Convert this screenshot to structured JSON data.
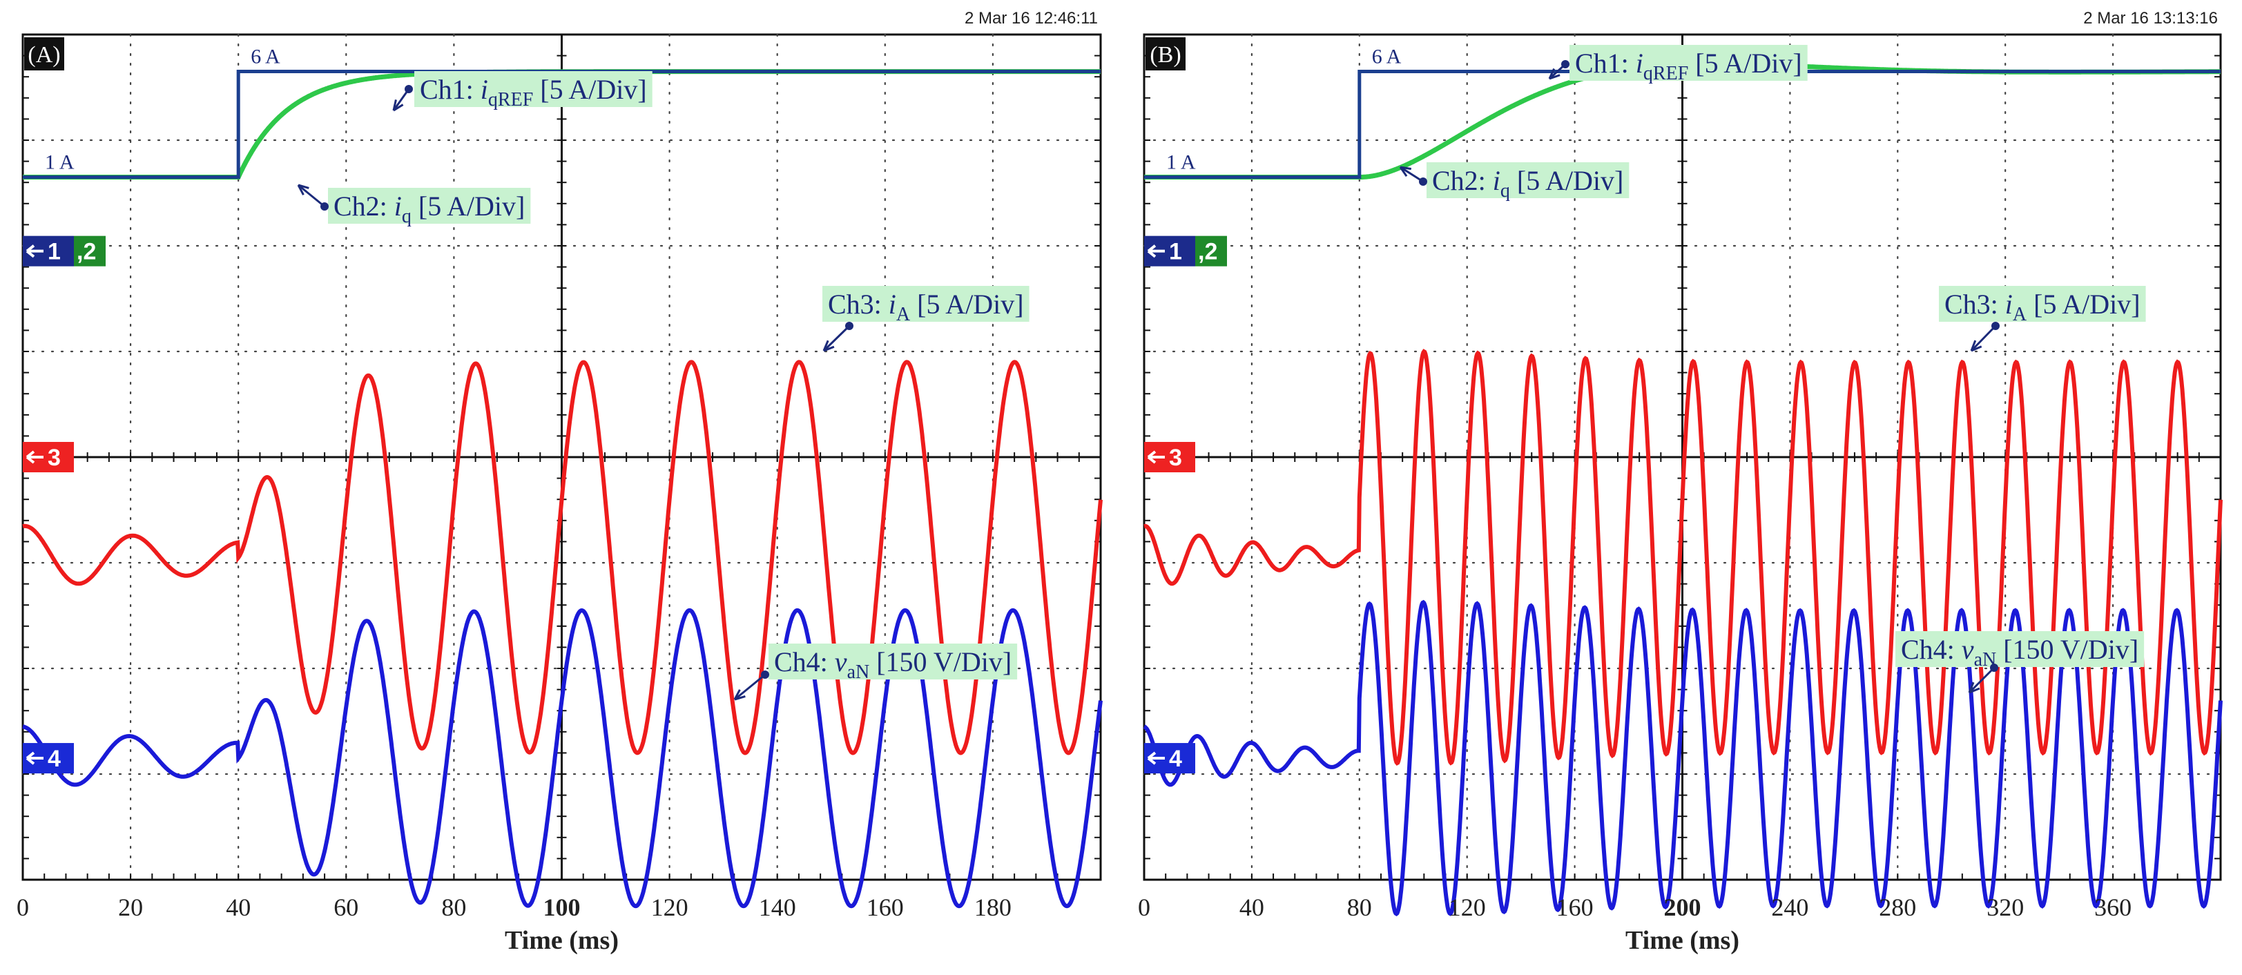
{
  "chart_data": [
    {
      "type": "line",
      "panel_label": "(A)",
      "timestamp": "2 Mar 16  12:46:11",
      "xlabel": "Time (ms)",
      "x_ticks": [
        "0",
        "20",
        "40",
        "60",
        "80",
        "100",
        "120",
        "140",
        "160",
        "180"
      ],
      "x_ticks_major": [
        "100"
      ],
      "xlim": [
        0,
        200
      ],
      "grid": true,
      "step_time_ms": 40,
      "iq_levels_A": [
        1,
        6
      ],
      "current_freq_hz": 50,
      "pre_step_freq_hz": 50,
      "iq_overshoot": false,
      "markers": [
        {
          "channel": "ch12",
          "parts": [
            {
              "text": "1",
              "bg": "#1c2b8c"
            },
            {
              "text": ",2",
              "bg": "#1f8a2a"
            }
          ]
        },
        {
          "channel": "ch3",
          "parts": [
            {
              "text": "3",
              "bg": "#ee2222"
            }
          ]
        },
        {
          "channel": "ch4",
          "parts": [
            {
              "text": "4",
              "bg": "#1a2ad6"
            }
          ]
        }
      ],
      "level_labels": [
        "1 A",
        "6 A"
      ],
      "series": [
        {
          "name": "Ch1: iqREF [5 A/Div]",
          "color": "#1b3f8f",
          "label": {
            "pre": "Ch1: ",
            "var": "i",
            "sub": "qREF",
            "unit": " [5 A/Div]"
          }
        },
        {
          "name": "Ch2: iq [5 A/Div]",
          "color": "#2ec84a",
          "label": {
            "pre": "Ch2: ",
            "var": "i",
            "sub": "q",
            "unit": " [5 A/Div]"
          }
        },
        {
          "name": "Ch3: iA [5 A/Div]",
          "color": "#ee1c1c",
          "label": {
            "pre": "Ch3: ",
            "var": "i",
            "sub": "A",
            "unit": " [5 A/Div]"
          }
        },
        {
          "name": "Ch4: vaN [150 V/Div]",
          "color": "#1a1ad8",
          "label": {
            "pre": "Ch4: ",
            "var": "v",
            "sub": "aN",
            "unit": " [150 V/Div]"
          }
        }
      ]
    },
    {
      "type": "line",
      "panel_label": "(B)",
      "timestamp": "2 Mar 16  13:13:16",
      "xlabel": "Time (ms)",
      "x_ticks": [
        "0",
        "40",
        "80",
        "120",
        "160",
        "200",
        "240",
        "280",
        "320",
        "360"
      ],
      "x_ticks_major": [
        "200"
      ],
      "xlim": [
        0,
        400
      ],
      "grid": true,
      "step_time_ms": 80,
      "iq_levels_A": [
        1,
        6
      ],
      "current_freq_hz": 50,
      "pre_step_freq_hz": 50,
      "iq_overshoot": true,
      "markers": [
        {
          "channel": "ch12",
          "parts": [
            {
              "text": "1",
              "bg": "#1c2b8c"
            },
            {
              "text": ",2",
              "bg": "#1f8a2a"
            }
          ]
        },
        {
          "channel": "ch3",
          "parts": [
            {
              "text": "3",
              "bg": "#ee2222"
            }
          ]
        },
        {
          "channel": "ch4",
          "parts": [
            {
              "text": "4",
              "bg": "#1a2ad6"
            }
          ]
        }
      ],
      "level_labels": [
        "1 A",
        "6 A"
      ],
      "series": [
        {
          "name": "Ch1: iqREF [5 A/Div]",
          "color": "#1b3f8f",
          "label": {
            "pre": "Ch1: ",
            "var": "i",
            "sub": "qREF",
            "unit": " [5 A/Div]"
          }
        },
        {
          "name": "Ch2: iq [5 A/Div]",
          "color": "#2ec84a",
          "label": {
            "pre": "Ch2: ",
            "var": "i",
            "sub": "q",
            "unit": " [5 A/Div]"
          }
        },
        {
          "name": "Ch3: iA [5 A/Div]",
          "color": "#ee1c1c",
          "label": {
            "pre": "Ch3: ",
            "var": "i",
            "sub": "A",
            "unit": " [5 A/Div]"
          }
        },
        {
          "name": "Ch4: vaN [150 V/Div]",
          "color": "#1a1ad8",
          "label": {
            "pre": "Ch4: ",
            "var": "v",
            "sub": "aN",
            "unit": " [150 V/Div]"
          }
        }
      ]
    }
  ]
}
